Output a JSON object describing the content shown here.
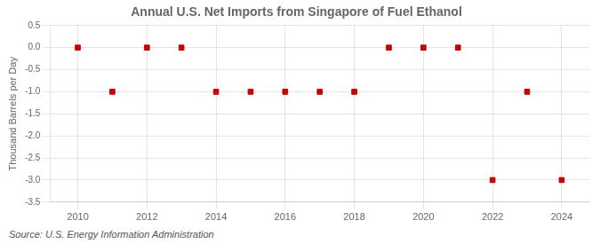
{
  "chart_data": {
    "type": "scatter",
    "title": "Annual U.S. Net Imports from Singapore of Fuel Ethanol",
    "ylabel": "Thousand Barrels per Day",
    "annotations": [
      "Source: U.S. Energy Information Administration"
    ],
    "x": [
      2010,
      2011,
      2012,
      2013,
      2014,
      2015,
      2016,
      2017,
      2018,
      2019,
      2020,
      2021,
      2022,
      2023,
      2024
    ],
    "values": [
      0.0,
      -1.0,
      0.0,
      0.0,
      -1.0,
      -1.0,
      -1.0,
      -1.0,
      -1.0,
      0.0,
      0.0,
      0.0,
      -3.0,
      -1.0,
      -3.0
    ],
    "color": "#cc0000",
    "marker": "square",
    "xlim": [
      2009.2,
      2024.8
    ],
    "xticks": [
      2010,
      2012,
      2014,
      2016,
      2018,
      2020,
      2022,
      2024
    ],
    "ylim": [
      -3.5,
      0.5
    ],
    "yticks": [
      0.5,
      {
        "value": 0.0,
        "label": "0.0"
      },
      -0.5,
      {
        "value": -1.0,
        "label": "-1.0"
      },
      -1.5,
      {
        "value": -2.0,
        "label": "-2.0"
      },
      -2.5,
      {
        "value": -3.0,
        "label": "-3.0"
      },
      -3.5
    ],
    "grid": true
  }
}
